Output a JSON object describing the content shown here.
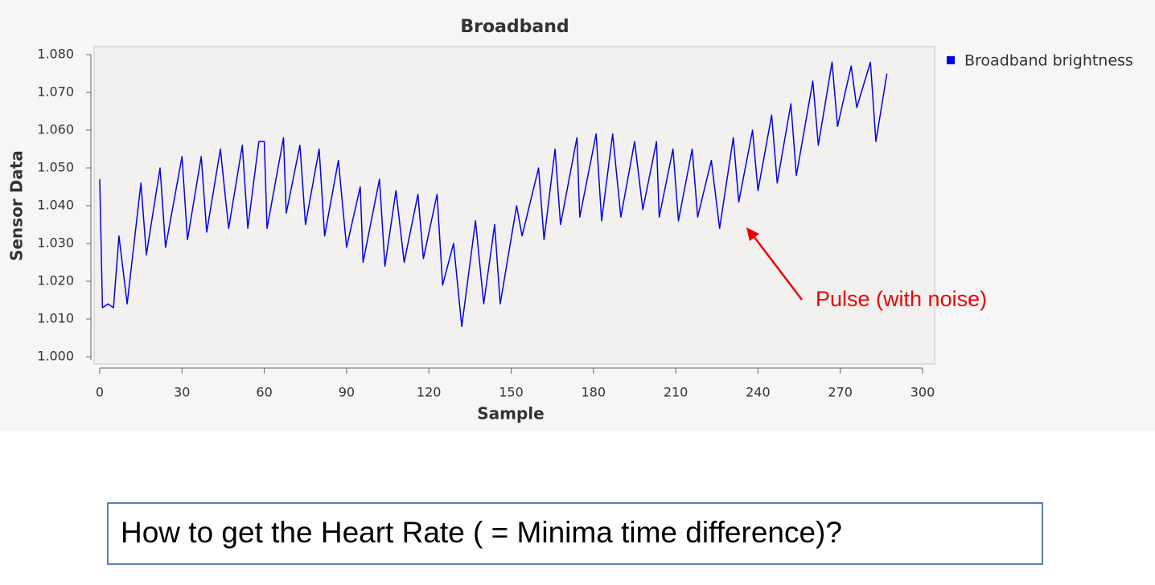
{
  "chart_data": {
    "type": "line",
    "title": "Broadband",
    "xlabel": "Sample",
    "ylabel": "Sensor Data",
    "x": [
      0,
      1,
      3,
      5,
      7,
      10,
      15,
      17,
      22,
      24,
      30,
      32,
      37,
      39,
      44,
      47,
      52,
      54,
      58,
      60,
      61,
      67,
      68,
      73,
      75,
      80,
      82,
      87,
      90,
      95,
      96,
      102,
      104,
      108,
      111,
      116,
      118,
      123,
      125,
      129,
      132,
      137,
      140,
      144,
      146,
      152,
      154,
      160,
      162,
      166,
      168,
      174,
      175,
      181,
      183,
      187,
      190,
      195,
      198,
      203,
      204,
      209,
      211,
      216,
      218,
      223,
      226,
      231,
      233,
      238,
      240,
      245,
      247,
      252,
      254,
      260,
      262,
      267,
      269,
      274,
      276,
      281,
      283,
      287
    ],
    "series": [
      {
        "name": "Broadband brightness",
        "color": "#0000ee",
        "values": [
          1.047,
          1.013,
          1.014,
          1.013,
          1.032,
          1.014,
          1.046,
          1.027,
          1.05,
          1.029,
          1.053,
          1.031,
          1.053,
          1.033,
          1.055,
          1.034,
          1.056,
          1.034,
          1.057,
          1.057,
          1.034,
          1.058,
          1.038,
          1.056,
          1.035,
          1.055,
          1.032,
          1.052,
          1.029,
          1.045,
          1.025,
          1.047,
          1.024,
          1.044,
          1.025,
          1.043,
          1.026,
          1.043,
          1.019,
          1.03,
          1.008,
          1.036,
          1.014,
          1.035,
          1.014,
          1.04,
          1.032,
          1.05,
          1.031,
          1.055,
          1.035,
          1.058,
          1.037,
          1.059,
          1.036,
          1.059,
          1.037,
          1.057,
          1.039,
          1.057,
          1.037,
          1.055,
          1.036,
          1.055,
          1.037,
          1.052,
          1.034,
          1.058,
          1.041,
          1.06,
          1.044,
          1.064,
          1.046,
          1.067,
          1.048,
          1.073,
          1.056,
          1.078,
          1.061,
          1.077,
          1.066,
          1.078,
          1.057,
          1.075
        ]
      }
    ],
    "xlim": [
      0,
      300
    ],
    "xticks": [
      0,
      30,
      60,
      90,
      120,
      150,
      180,
      210,
      240,
      270,
      300
    ],
    "ylim": [
      1,
      1.08
    ],
    "yticks": [
      {
        "value": 1,
        "label": "1.000"
      },
      {
        "value": 1.01,
        "label": "1.010"
      },
      {
        "value": 1.02,
        "label": "1.020"
      },
      {
        "value": 1.03,
        "label": "1.030"
      },
      {
        "value": 1.04,
        "label": "1.040"
      },
      {
        "value": 1.05,
        "label": "1.050"
      },
      {
        "value": 1.06,
        "label": "1.060"
      },
      {
        "value": 1.07,
        "label": "1.070"
      },
      {
        "value": 1.08,
        "label": "1.080"
      }
    ],
    "legend": "right",
    "grid": false,
    "annotations": [
      {
        "text": "Pulse (with noise)",
        "color": "#ee0000"
      }
    ]
  },
  "question": "How to get the Heart Rate ( = Minima time difference)?"
}
